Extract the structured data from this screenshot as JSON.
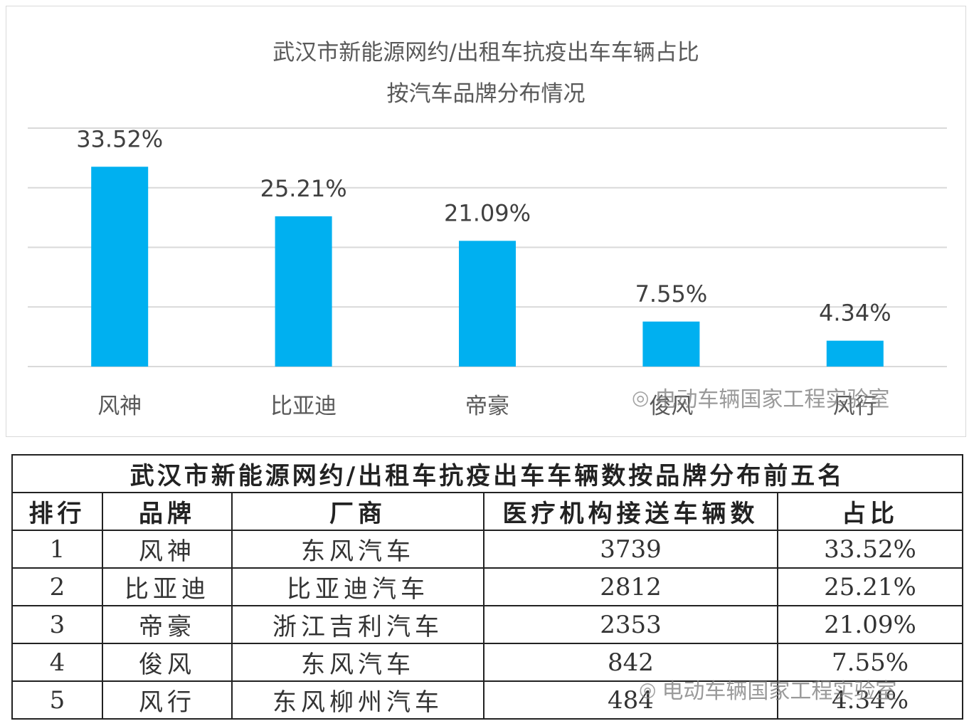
{
  "chart_data": {
    "type": "bar",
    "title": [
      "武汉市新能源网约/出租车抗疫出车车辆占比",
      "按汽车品牌分布情况"
    ],
    "categories": [
      "风神",
      "比亚迪",
      "帝豪",
      "俊风",
      "风行"
    ],
    "values": [
      33.52,
      25.21,
      21.09,
      7.55,
      4.34
    ],
    "data_labels": [
      "33.52%",
      "25.21%",
      "21.09%",
      "7.55%",
      "4.34%"
    ],
    "ylim": [
      0,
      40
    ],
    "grid": true,
    "bar_color": "#00b0f0",
    "xlabel": "",
    "ylabel": ""
  },
  "watermark": "电动车辆国家工程实验室",
  "table": {
    "caption": "武汉市新能源网约/出租车抗疫出车车辆数按品牌分布前五名",
    "headers": [
      "排行",
      "品牌",
      "厂商",
      "医疗机构接送车辆数",
      "占比"
    ],
    "rows": [
      [
        "1",
        "风神",
        "东风汽车",
        "3739",
        "33.52%"
      ],
      [
        "2",
        "比亚迪",
        "比亚迪汽车",
        "2812",
        "25.21%"
      ],
      [
        "3",
        "帝豪",
        "浙江吉利汽车",
        "2353",
        "21.09%"
      ],
      [
        "4",
        "俊风",
        "东风汽车",
        "842",
        "7.55%"
      ],
      [
        "5",
        "风行",
        "东风柳州汽车",
        "484",
        "4.34%"
      ]
    ]
  }
}
